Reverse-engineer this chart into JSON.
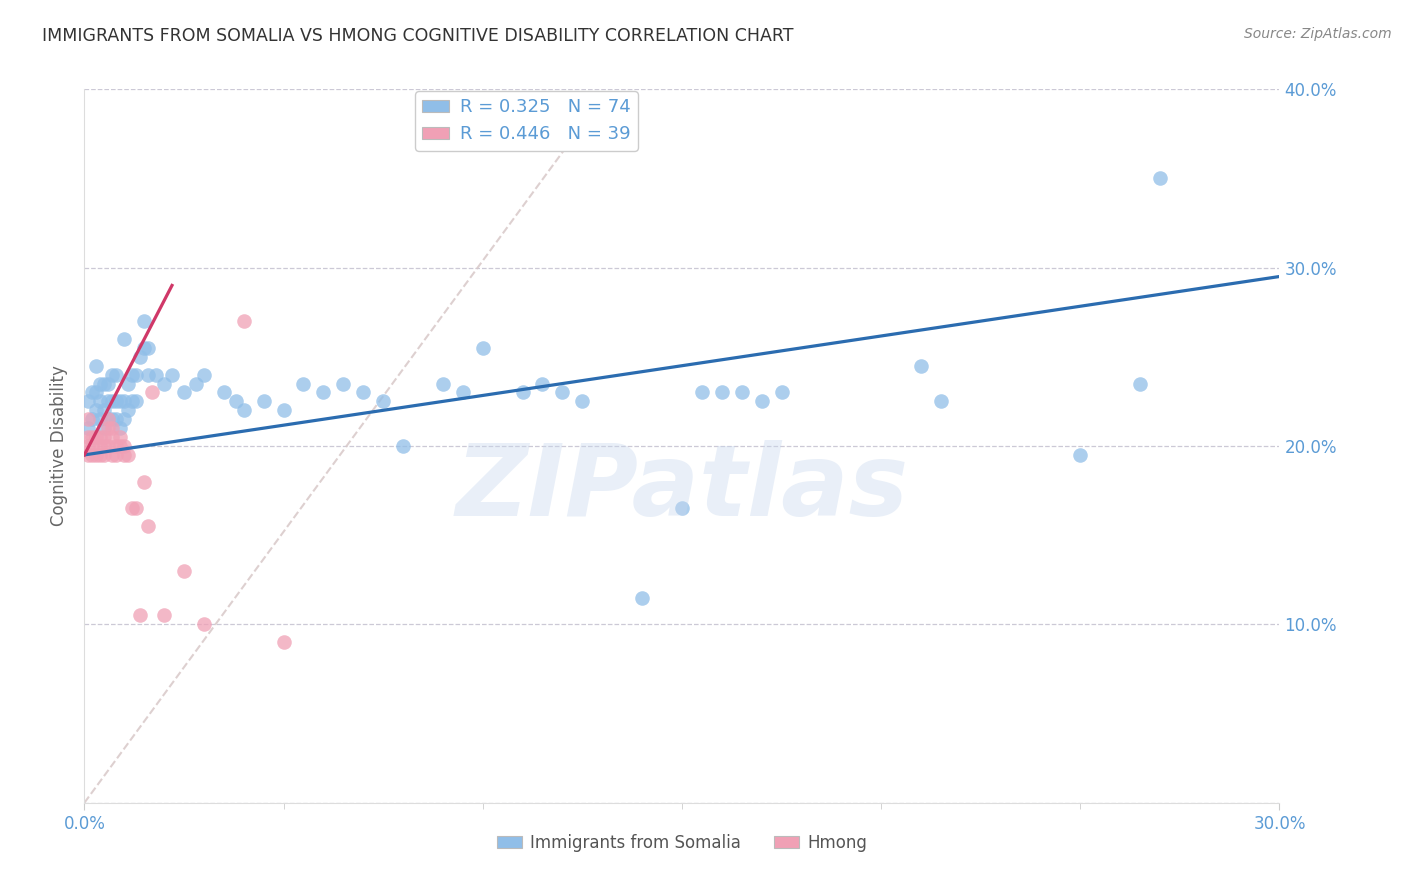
{
  "title": "IMMIGRANTS FROM SOMALIA VS HMONG COGNITIVE DISABILITY CORRELATION CHART",
  "source": "Source: ZipAtlas.com",
  "ylabel": "Cognitive Disability",
  "legend_somalia": "Immigrants from Somalia",
  "legend_hmong": "Hmong",
  "color_somalia": "#90BEE8",
  "color_hmong": "#F0A0B5",
  "color_trendline_somalia": "#2B6CB0",
  "color_trendline_hmong": "#D03868",
  "color_refline": "#D8C8C8",
  "color_grid": "#C0BCCC",
  "color_tick_label": "#5B9BD5",
  "color_title": "#333333",
  "color_source": "#888888",
  "color_ylabel": "#666666",
  "watermark": "ZIPatlas",
  "xlim": [
    0.0,
    0.3
  ],
  "ylim": [
    0.0,
    0.4
  ],
  "xticks": [
    0.0,
    0.3
  ],
  "xtick_labels": [
    "0.0%",
    "30.0%"
  ],
  "xtick_minor": [
    0.05,
    0.1,
    0.15,
    0.2,
    0.25
  ],
  "yticks": [
    0.0,
    0.1,
    0.2,
    0.3,
    0.4
  ],
  "ytick_labels_right": [
    "",
    "10.0%",
    "20.0%",
    "30.0%",
    "40.0%"
  ],
  "somalia_trendline": [
    0.0,
    0.3,
    0.195,
    0.295
  ],
  "hmong_trendline_x": [
    0.0,
    0.022
  ],
  "hmong_trendline_y": [
    0.195,
    0.29
  ],
  "refline_x": [
    0.0,
    0.13
  ],
  "refline_y": [
    0.0,
    0.395
  ],
  "somalia_x": [
    0.001,
    0.001,
    0.002,
    0.002,
    0.003,
    0.003,
    0.003,
    0.004,
    0.004,
    0.004,
    0.005,
    0.005,
    0.005,
    0.006,
    0.006,
    0.006,
    0.007,
    0.007,
    0.007,
    0.008,
    0.008,
    0.008,
    0.009,
    0.009,
    0.01,
    0.01,
    0.01,
    0.011,
    0.011,
    0.012,
    0.012,
    0.013,
    0.013,
    0.014,
    0.015,
    0.015,
    0.016,
    0.016,
    0.018,
    0.02,
    0.022,
    0.025,
    0.028,
    0.03,
    0.035,
    0.038,
    0.04,
    0.045,
    0.05,
    0.055,
    0.06,
    0.065,
    0.07,
    0.075,
    0.08,
    0.09,
    0.095,
    0.1,
    0.11,
    0.115,
    0.12,
    0.125,
    0.14,
    0.15,
    0.155,
    0.16,
    0.165,
    0.17,
    0.175,
    0.21,
    0.215,
    0.25,
    0.265,
    0.27
  ],
  "somalia_y": [
    0.21,
    0.225,
    0.215,
    0.23,
    0.22,
    0.23,
    0.245,
    0.215,
    0.225,
    0.235,
    0.21,
    0.22,
    0.235,
    0.215,
    0.225,
    0.235,
    0.215,
    0.225,
    0.24,
    0.215,
    0.225,
    0.24,
    0.21,
    0.225,
    0.215,
    0.225,
    0.26,
    0.22,
    0.235,
    0.225,
    0.24,
    0.225,
    0.24,
    0.25,
    0.255,
    0.27,
    0.24,
    0.255,
    0.24,
    0.235,
    0.24,
    0.23,
    0.235,
    0.24,
    0.23,
    0.225,
    0.22,
    0.225,
    0.22,
    0.235,
    0.23,
    0.235,
    0.23,
    0.225,
    0.2,
    0.235,
    0.23,
    0.255,
    0.23,
    0.235,
    0.23,
    0.225,
    0.115,
    0.165,
    0.23,
    0.23,
    0.23,
    0.225,
    0.23,
    0.245,
    0.225,
    0.195,
    0.235,
    0.35
  ],
  "hmong_x": [
    0.001,
    0.001,
    0.001,
    0.001,
    0.002,
    0.002,
    0.002,
    0.003,
    0.003,
    0.004,
    0.004,
    0.004,
    0.005,
    0.005,
    0.005,
    0.006,
    0.006,
    0.006,
    0.007,
    0.007,
    0.007,
    0.008,
    0.008,
    0.009,
    0.009,
    0.01,
    0.01,
    0.011,
    0.012,
    0.013,
    0.014,
    0.015,
    0.016,
    0.017,
    0.02,
    0.025,
    0.03,
    0.04,
    0.05
  ],
  "hmong_y": [
    0.195,
    0.2,
    0.205,
    0.215,
    0.195,
    0.2,
    0.205,
    0.195,
    0.205,
    0.195,
    0.2,
    0.205,
    0.195,
    0.2,
    0.205,
    0.2,
    0.21,
    0.215,
    0.195,
    0.205,
    0.21,
    0.195,
    0.2,
    0.2,
    0.205,
    0.195,
    0.2,
    0.195,
    0.165,
    0.165,
    0.105,
    0.18,
    0.155,
    0.23,
    0.105,
    0.13,
    0.1,
    0.27,
    0.09
  ]
}
